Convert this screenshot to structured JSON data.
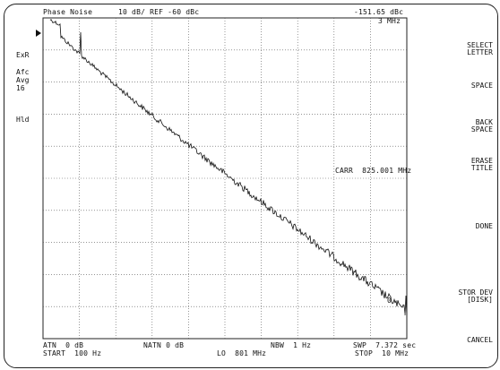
{
  "header": {
    "mode": "Phase Noise",
    "scale_ref": "10 dB/ REF -60 dBc",
    "marker_level": "-151.65 dBc",
    "marker_freq": "3 MHz"
  },
  "left_annotations": {
    "exr": "ExR",
    "afc": "Afc",
    "avg": "Avg",
    "avg_count": "16",
    "hld": "Hld"
  },
  "carrier": "CARR  825.001 MHz",
  "marker_label": "0",
  "footer": {
    "atn": "ATN  0 dB",
    "natn": "NATN 0 dB",
    "nbw": "NBW  1 Hz",
    "swp": "SWP  7.372 sec",
    "start": "START  100 Hz",
    "lo": "LO  801 MHz",
    "stop": "STOP  10 MHz"
  },
  "softkeys": [
    {
      "label": "SELECT\nLETTER"
    },
    {
      "label": "SPACE"
    },
    {
      "label": "BACK\nSPACE"
    },
    {
      "label": "ERASE\nTITLE"
    },
    {
      "label": "DONE"
    },
    {
      "label": "STOR DEV\n[DISK]"
    },
    {
      "label": "CANCEL"
    }
  ],
  "colors": {
    "trace": "#111111",
    "grid": "#555555",
    "frame": "#222222"
  }
}
